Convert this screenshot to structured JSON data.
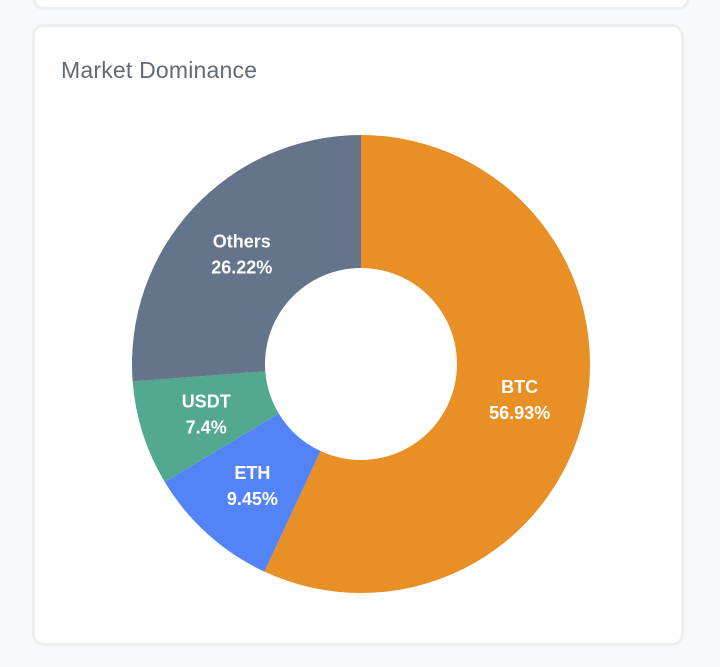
{
  "card": {
    "title": "Market Dominance"
  },
  "chart_data": {
    "type": "pie",
    "variant": "donut",
    "categories": [
      "BTC",
      "ETH",
      "USDT",
      "Others"
    ],
    "values": [
      56.93,
      9.45,
      7.4,
      26.22
    ],
    "value_labels": [
      "56.93%",
      "9.45%",
      "7.4%",
      "26.22%"
    ],
    "colors": [
      "#e88f25",
      "#5283f7",
      "#52a98f",
      "#64748b"
    ],
    "title": "Market Dominance",
    "start_angle_deg": 0,
    "direction": "clockwise",
    "legend": "none"
  }
}
